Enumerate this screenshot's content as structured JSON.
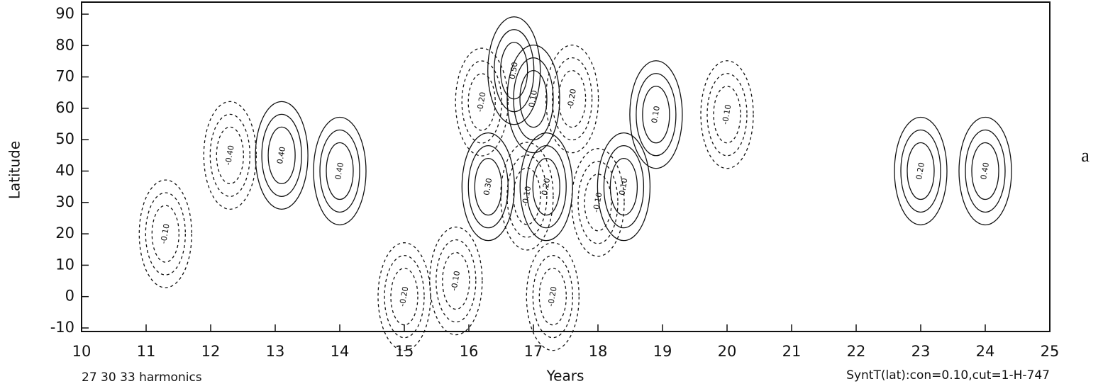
{
  "chart_data": {
    "type": "contour",
    "xlabel": "Years",
    "ylabel": "Latitude",
    "xlim": [
      10,
      25
    ],
    "ylim": [
      -10,
      90
    ],
    "xticks": [
      10,
      11,
      12,
      13,
      14,
      15,
      16,
      17,
      18,
      19,
      20,
      21,
      22,
      23,
      24,
      25
    ],
    "yticks": [
      -10,
      0,
      10,
      20,
      30,
      40,
      50,
      60,
      70,
      80,
      90
    ],
    "footnote_left": "27 30 33 harmonics",
    "footnote_right": "SyntT(lat):con=0.10,cut=1-H-747",
    "panel_label": "a",
    "contour_labels": [
      {
        "x": 16.3,
        "y": 35,
        "label": "0.30"
      },
      {
        "x": 17.2,
        "y": 35,
        "label": "0.20"
      },
      {
        "x": 18.4,
        "y": 35,
        "label": "0.10"
      },
      {
        "x": 18.0,
        "y": 30,
        "label": "-0.10"
      },
      {
        "x": 15.8,
        "y": 5,
        "label": "-0.10"
      },
      {
        "x": 17.3,
        "y": 0,
        "label": "-0.20"
      },
      {
        "x": 16.9,
        "y": 32,
        "label": "-0.10"
      },
      {
        "x": 14.0,
        "y": 40,
        "label": "0.40"
      },
      {
        "x": 13.1,
        "y": 45,
        "label": "0.40"
      },
      {
        "x": 12.3,
        "y": 45,
        "label": "-0.40"
      },
      {
        "x": 11.3,
        "y": 20,
        "label": "-0.10"
      },
      {
        "x": 17.0,
        "y": 63,
        "label": "0.10"
      },
      {
        "x": 18.9,
        "y": 58,
        "label": "0.10"
      },
      {
        "x": 20.0,
        "y": 58,
        "label": "-0.10"
      },
      {
        "x": 16.2,
        "y": 62,
        "label": "-0.20"
      },
      {
        "x": 16.7,
        "y": 72,
        "label": "0.50"
      },
      {
        "x": 15.0,
        "y": 0,
        "label": "-0.20"
      },
      {
        "x": 17.6,
        "y": 63,
        "label": "-0.20"
      },
      {
        "x": 23.0,
        "y": 40,
        "label": "0.20"
      },
      {
        "x": 24.0,
        "y": 40,
        "label": "0.40"
      }
    ]
  }
}
